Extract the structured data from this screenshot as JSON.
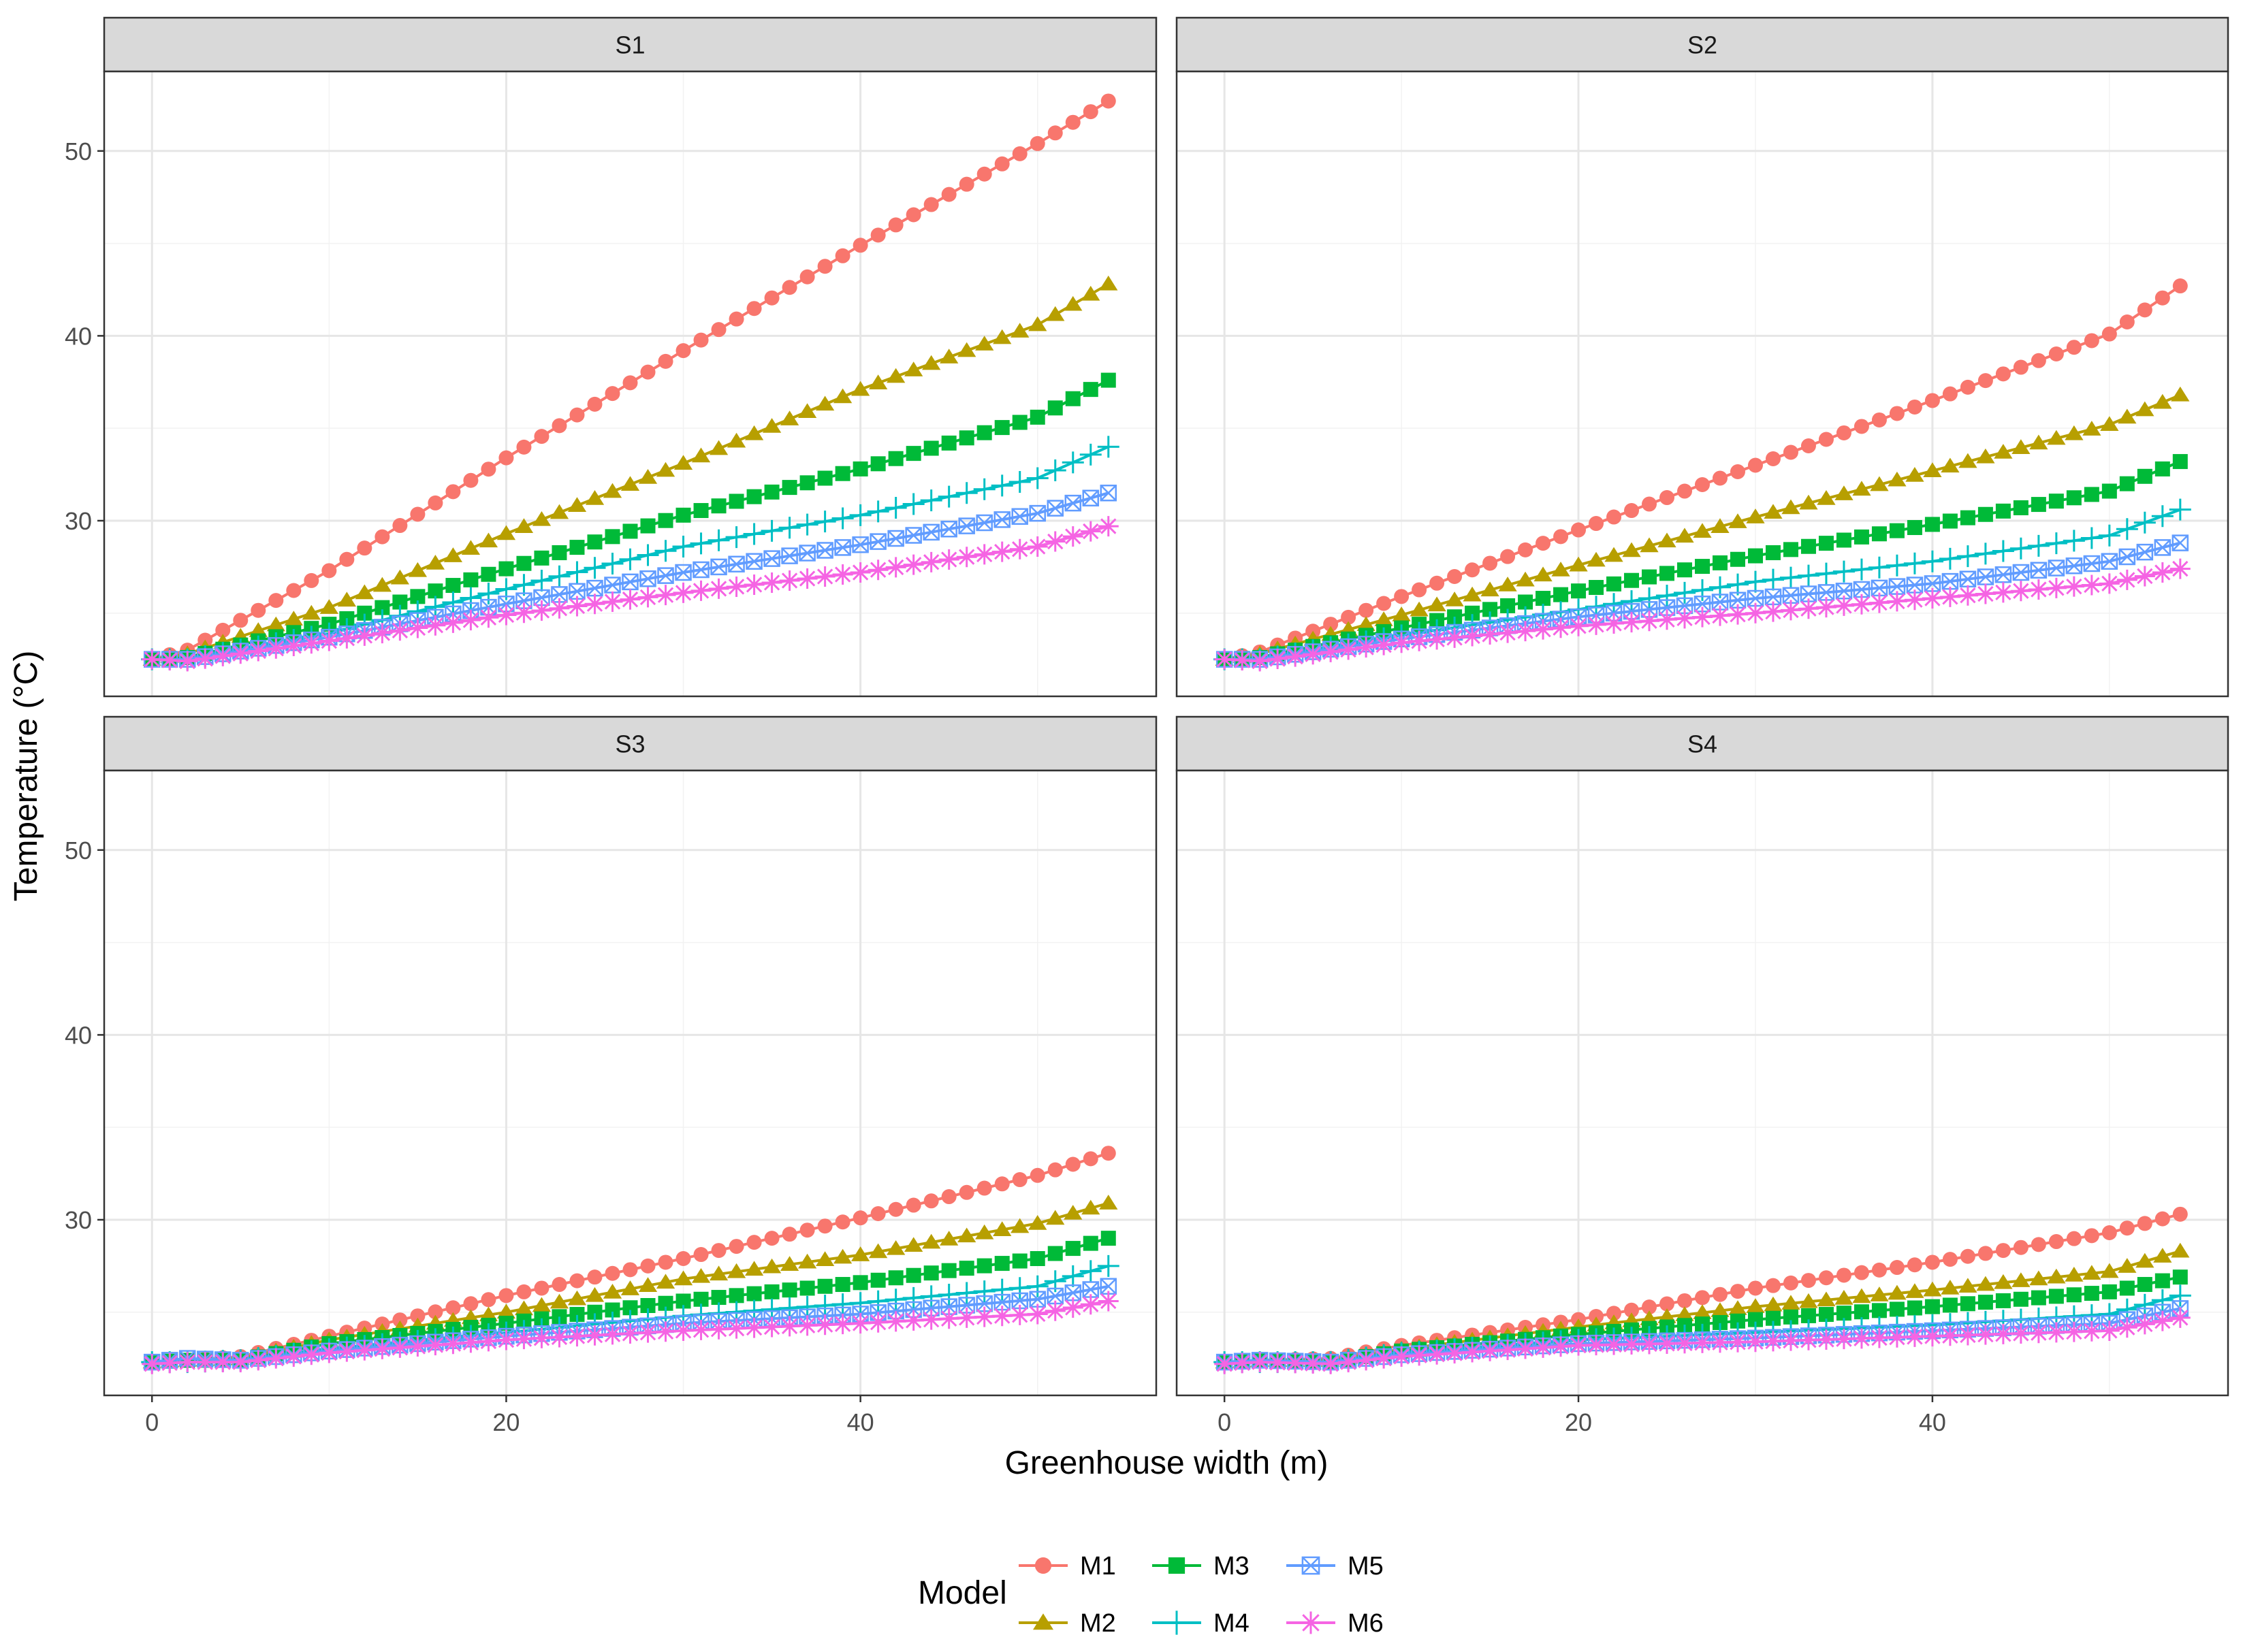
{
  "chart_data": {
    "type": "line",
    "xlabel": "Greenhouse width (m)",
    "ylabel": "Temperature (°C)",
    "xlim": [
      -2.7,
      56.7
    ],
    "ylim": [
      20.5,
      54.3
    ],
    "x_ticks": [
      0,
      20,
      40
    ],
    "y_ticks": [
      30,
      40,
      50
    ],
    "x_tick_labels": [
      "0",
      "20",
      "40"
    ],
    "y_tick_labels": [
      "30",
      "40",
      "50"
    ],
    "grid": true,
    "legend": {
      "title": "Model",
      "position": "bottom",
      "entries": [
        "M1",
        "M2",
        "M3",
        "M4",
        "M5",
        "M6"
      ]
    },
    "series_styles": [
      {
        "name": "M1",
        "color": "#F8766D",
        "marker": "circle"
      },
      {
        "name": "M2",
        "color": "#B79F00",
        "marker": "triangle"
      },
      {
        "name": "M3",
        "color": "#00BA38",
        "marker": "square"
      },
      {
        "name": "M4",
        "color": "#00BFC4",
        "marker": "plus"
      },
      {
        "name": "M5",
        "color": "#619CFF",
        "marker": "square-cross"
      },
      {
        "name": "M6",
        "color": "#F564E3",
        "marker": "asterisk"
      }
    ],
    "x_range": [
      0,
      54
    ],
    "points_per_series": 55,
    "panels": [
      {
        "label": "S1",
        "series": [
          {
            "name": "M1",
            "points": [
              [
                0,
                22.5
              ],
              [
                2,
                23.0
              ],
              [
                10,
                27.3
              ],
              [
                20,
                33.4
              ],
              [
                30,
                39.2
              ],
              [
                40,
                44.9
              ],
              [
                50,
                50.4
              ],
              [
                54,
                52.7
              ]
            ]
          },
          {
            "name": "M2",
            "points": [
              [
                0,
                22.5
              ],
              [
                2,
                22.8
              ],
              [
                10,
                25.3
              ],
              [
                20,
                29.3
              ],
              [
                30,
                33.1
              ],
              [
                40,
                37.1
              ],
              [
                50,
                40.6
              ],
              [
                54,
                42.8
              ]
            ]
          },
          {
            "name": "M3",
            "points": [
              [
                0,
                22.5
              ],
              [
                2,
                22.6
              ],
              [
                10,
                24.4
              ],
              [
                20,
                27.4
              ],
              [
                30,
                30.3
              ],
              [
                40,
                32.8
              ],
              [
                50,
                35.6
              ],
              [
                54,
                37.6
              ]
            ]
          },
          {
            "name": "M4",
            "points": [
              [
                0,
                22.5
              ],
              [
                2,
                22.5
              ],
              [
                10,
                23.9
              ],
              [
                20,
                26.3
              ],
              [
                30,
                28.6
              ],
              [
                40,
                30.3
              ],
              [
                50,
                32.3
              ],
              [
                54,
                34.0
              ]
            ]
          },
          {
            "name": "M5",
            "points": [
              [
                0,
                22.5
              ],
              [
                2,
                22.5
              ],
              [
                10,
                23.7
              ],
              [
                20,
                25.5
              ],
              [
                30,
                27.2
              ],
              [
                40,
                28.7
              ],
              [
                50,
                30.4
              ],
              [
                54,
                31.5
              ]
            ]
          },
          {
            "name": "M6",
            "points": [
              [
                0,
                22.5
              ],
              [
                2,
                22.4
              ],
              [
                10,
                23.5
              ],
              [
                20,
                24.9
              ],
              [
                30,
                26.1
              ],
              [
                40,
                27.2
              ],
              [
                50,
                28.6
              ],
              [
                54,
                29.7
              ]
            ]
          }
        ]
      },
      {
        "label": "S2",
        "series": [
          {
            "name": "M1",
            "points": [
              [
                0,
                22.5
              ],
              [
                2,
                22.9
              ],
              [
                10,
                25.9
              ],
              [
                20,
                29.5
              ],
              [
                30,
                33.0
              ],
              [
                40,
                36.5
              ],
              [
                50,
                40.1
              ],
              [
                54,
                42.7
              ]
            ]
          },
          {
            "name": "M2",
            "points": [
              [
                0,
                22.5
              ],
              [
                2,
                22.8
              ],
              [
                10,
                24.9
              ],
              [
                20,
                27.6
              ],
              [
                30,
                30.2
              ],
              [
                40,
                32.7
              ],
              [
                50,
                35.2
              ],
              [
                54,
                36.8
              ]
            ]
          },
          {
            "name": "M3",
            "points": [
              [
                0,
                22.5
              ],
              [
                2,
                22.6
              ],
              [
                10,
                24.2
              ],
              [
                20,
                26.2
              ],
              [
                30,
                28.1
              ],
              [
                40,
                29.8
              ],
              [
                50,
                31.6
              ],
              [
                54,
                33.2
              ]
            ]
          },
          {
            "name": "M4",
            "points": [
              [
                0,
                22.5
              ],
              [
                2,
                22.5
              ],
              [
                10,
                23.8
              ],
              [
                20,
                25.2
              ],
              [
                30,
                26.7
              ],
              [
                40,
                27.8
              ],
              [
                50,
                29.2
              ],
              [
                54,
                30.6
              ]
            ]
          },
          {
            "name": "M5",
            "points": [
              [
                0,
                22.5
              ],
              [
                2,
                22.5
              ],
              [
                10,
                23.6
              ],
              [
                20,
                24.8
              ],
              [
                30,
                25.8
              ],
              [
                40,
                26.6
              ],
              [
                50,
                27.8
              ],
              [
                54,
                28.8
              ]
            ]
          },
          {
            "name": "M6",
            "points": [
              [
                0,
                22.5
              ],
              [
                2,
                22.4
              ],
              [
                10,
                23.4
              ],
              [
                20,
                24.3
              ],
              [
                30,
                25.0
              ],
              [
                40,
                25.8
              ],
              [
                50,
                26.6
              ],
              [
                54,
                27.4
              ]
            ]
          }
        ]
      },
      {
        "label": "S3",
        "series": [
          {
            "name": "M1",
            "points": [
              [
                0,
                22.3
              ],
              [
                2,
                22.4
              ],
              [
                5,
                22.6
              ],
              [
                10,
                23.7
              ],
              [
                20,
                25.9
              ],
              [
                30,
                27.9
              ],
              [
                40,
                30.1
              ],
              [
                50,
                32.4
              ],
              [
                54,
                33.6
              ]
            ]
          },
          {
            "name": "M2",
            "points": [
              [
                0,
                22.3
              ],
              [
                2,
                22.4
              ],
              [
                5,
                22.5
              ],
              [
                10,
                23.5
              ],
              [
                20,
                25.0
              ],
              [
                30,
                26.8
              ],
              [
                40,
                28.1
              ],
              [
                50,
                29.8
              ],
              [
                54,
                30.9
              ]
            ]
          },
          {
            "name": "M3",
            "points": [
              [
                0,
                22.3
              ],
              [
                2,
                22.4
              ],
              [
                5,
                22.4
              ],
              [
                10,
                23.3
              ],
              [
                20,
                24.4
              ],
              [
                30,
                25.6
              ],
              [
                40,
                26.6
              ],
              [
                50,
                27.9
              ],
              [
                54,
                29.0
              ]
            ]
          },
          {
            "name": "M4",
            "points": [
              [
                0,
                22.3
              ],
              [
                2,
                22.3
              ],
              [
                5,
                22.4
              ],
              [
                10,
                23.0
              ],
              [
                20,
                23.9
              ],
              [
                30,
                24.8
              ],
              [
                40,
                25.5
              ],
              [
                50,
                26.4
              ],
              [
                54,
                27.5
              ]
            ]
          },
          {
            "name": "M5",
            "points": [
              [
                0,
                22.3
              ],
              [
                2,
                22.5
              ],
              [
                5,
                22.4
              ],
              [
                10,
                22.9
              ],
              [
                20,
                23.7
              ],
              [
                30,
                24.4
              ],
              [
                40,
                24.9
              ],
              [
                50,
                25.7
              ],
              [
                54,
                26.4
              ]
            ]
          },
          {
            "name": "M6",
            "points": [
              [
                0,
                22.2
              ],
              [
                2,
                22.3
              ],
              [
                5,
                22.3
              ],
              [
                10,
                22.8
              ],
              [
                20,
                23.5
              ],
              [
                30,
                24.0
              ],
              [
                40,
                24.4
              ],
              [
                50,
                24.9
              ],
              [
                54,
                25.6
              ]
            ]
          }
        ]
      },
      {
        "label": "S4",
        "series": [
          {
            "name": "M1",
            "points": [
              [
                0,
                22.3
              ],
              [
                2,
                22.4
              ],
              [
                6,
                22.5
              ],
              [
                10,
                23.2
              ],
              [
                20,
                24.6
              ],
              [
                30,
                26.3
              ],
              [
                40,
                27.7
              ],
              [
                50,
                29.3
              ],
              [
                54,
                30.3
              ]
            ]
          },
          {
            "name": "M2",
            "points": [
              [
                0,
                22.3
              ],
              [
                2,
                22.4
              ],
              [
                6,
                22.4
              ],
              [
                10,
                23.0
              ],
              [
                20,
                24.2
              ],
              [
                30,
                25.3
              ],
              [
                40,
                26.2
              ],
              [
                50,
                27.2
              ],
              [
                54,
                28.3
              ]
            ]
          },
          {
            "name": "M3",
            "points": [
              [
                0,
                22.3
              ],
              [
                2,
                22.4
              ],
              [
                6,
                22.3
              ],
              [
                10,
                22.9
              ],
              [
                20,
                23.8
              ],
              [
                30,
                24.6
              ],
              [
                40,
                25.3
              ],
              [
                50,
                26.1
              ],
              [
                54,
                26.9
              ]
            ]
          },
          {
            "name": "M4",
            "points": [
              [
                0,
                22.3
              ],
              [
                2,
                22.3
              ],
              [
                6,
                22.3
              ],
              [
                10,
                22.8
              ],
              [
                20,
                23.5
              ],
              [
                30,
                23.9
              ],
              [
                40,
                24.3
              ],
              [
                50,
                24.9
              ],
              [
                54,
                25.9
              ]
            ]
          },
          {
            "name": "M5",
            "points": [
              [
                0,
                22.3
              ],
              [
                2,
                22.4
              ],
              [
                6,
                22.3
              ],
              [
                10,
                22.7
              ],
              [
                20,
                23.3
              ],
              [
                30,
                23.6
              ],
              [
                40,
                24.0
              ],
              [
                50,
                24.4
              ],
              [
                54,
                25.2
              ]
            ]
          },
          {
            "name": "M6",
            "points": [
              [
                0,
                22.2
              ],
              [
                2,
                22.3
              ],
              [
                6,
                22.2
              ],
              [
                10,
                22.6
              ],
              [
                20,
                23.2
              ],
              [
                30,
                23.4
              ],
              [
                40,
                23.7
              ],
              [
                50,
                24.0
              ],
              [
                54,
                24.7
              ]
            ]
          }
        ]
      }
    ]
  }
}
